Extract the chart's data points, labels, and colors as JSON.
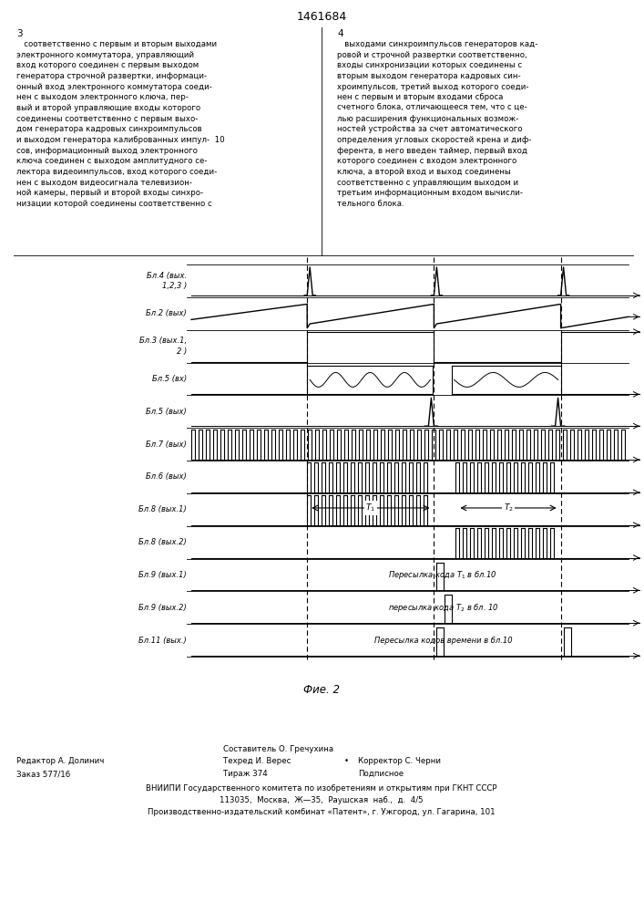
{
  "title": "1461684",
  "fig2_label": "Фие. 2",
  "background_color": "#ffffff",
  "channel_labels": [
    "Бл.4 (вых.\n1,2,3 )",
    "Бл.2 (вых)",
    "Бл.3 (вых.1,\n2 )",
    "Бл.5 (вх)",
    "Бл.5 (вых)",
    "Бл.7 (вых)",
    "Бл.6 (вых)",
    "Бл.8 (вых.1)",
    "Бл.8 (вых.2)",
    "Бл.9 (вых.1)",
    "Бл.9 (вых.2)",
    "Бл.11 (вых.)"
  ],
  "left_col": "   соответственно с первым и вторым выходами\nэлектронного коммутатора, управляющий\nвход которого соединен с первым выходом\nгенератора строчной развертки, информаци-\nонный вход электронного коммутатора соеди-\nнен с выходом электронного ключа, пер-\nвый и второй управляющие входы которого\nсоединены соответственно с первым выхо-\nдом генератора кадровых синхроимпульсов\nи выходом генератора калиброванных импул-  10\nсов, информационный выход электронного\nключа соединен с выходом амплитудного се-\nлектора видеоимпульсов, вход которого соеди-\nнен с выходом видеосигнала телевизион-\nной камеры, первый и второй входы синхро-\nнизации которой соединены соответственно с",
  "right_col": "   выходами синхроимпульсов генераторов кад-\nровой и строчной развертки соответственно,\nвходы синхронизации которых соединены с\nвторым выходом генератора кадровых син-\nхроимпульсов, третий выход которого соеди-\nнен с первым и вторым входами сброса\nсчетного блока, отличающееся тем, что с це-\nлью расширения функциональных возмож-\nностей устройства за счет автоматического\nопределения угловых скоростей крена и диф-\nферента, в него введен таймер, первый вход\nкоторого соединен с входом электронного\nключа, а второй вход и выход соединены\nсоответственно с управляющим выходом и\nтретьим информационным входом вычисли-\nтельного блока."
}
